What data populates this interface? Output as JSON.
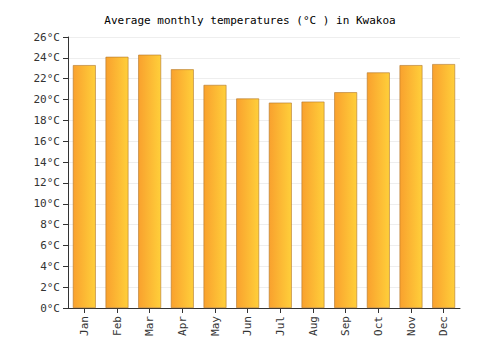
{
  "chart_data": {
    "type": "bar",
    "title": "Average monthly temperatures (°C ) in Kwakoa",
    "categories": [
      "Jan",
      "Feb",
      "Mar",
      "Apr",
      "May",
      "Jun",
      "Jul",
      "Aug",
      "Sep",
      "Oct",
      "Nov",
      "Dec"
    ],
    "values": [
      23.3,
      24.1,
      24.3,
      22.9,
      21.4,
      20.1,
      19.7,
      19.8,
      20.7,
      22.6,
      23.3,
      23.4
    ],
    "color": "#f9a12e",
    "ylim": [
      0,
      26
    ],
    "yticks": [
      {
        "value": 0,
        "label": "0°C"
      },
      {
        "value": 2,
        "label": "2°C"
      },
      {
        "value": 4,
        "label": "4°C"
      },
      {
        "value": 6,
        "label": "6°C"
      },
      {
        "value": 8,
        "label": "8°C"
      },
      {
        "value": 10,
        "label": "10°C"
      },
      {
        "value": 12,
        "label": "12°C"
      },
      {
        "value": 14,
        "label": "14°C"
      },
      {
        "value": 16,
        "label": "16°C"
      },
      {
        "value": 18,
        "label": "18°C"
      },
      {
        "value": 20,
        "label": "20°C"
      },
      {
        "value": 22,
        "label": "22°C"
      },
      {
        "value": 24,
        "label": "24°C"
      },
      {
        "value": 26,
        "label": "26°C"
      }
    ],
    "grid": true
  }
}
